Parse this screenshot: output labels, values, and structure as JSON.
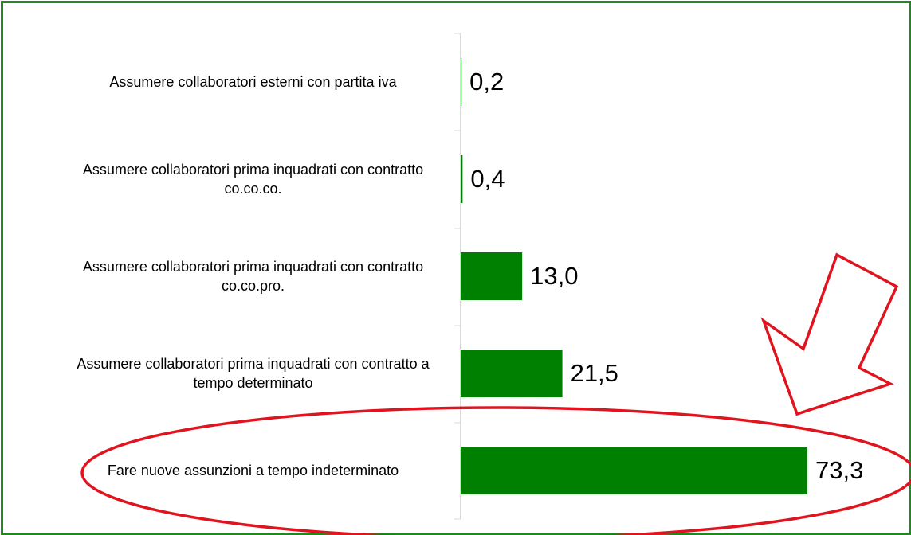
{
  "chart_data": {
    "type": "hbar",
    "categories": [
      "Assumere collaboratori esterni con partita iva",
      "Assumere collaboratori prima inquadrati con contratto co.co.co.",
      "Assumere collaboratori prima inquadrati con contratto co.co.pro.",
      "Assumere collaboratori prima inquadrati con contratto a tempo determinato",
      "Fare nuove assunzioni a tempo indeterminato"
    ],
    "values": [
      0.2,
      0.4,
      13.0,
      21.5,
      73.3
    ],
    "value_labels": [
      "0,2",
      "0,4",
      "13,0",
      "21,5",
      "73,3"
    ],
    "color": "#008000"
  }
}
